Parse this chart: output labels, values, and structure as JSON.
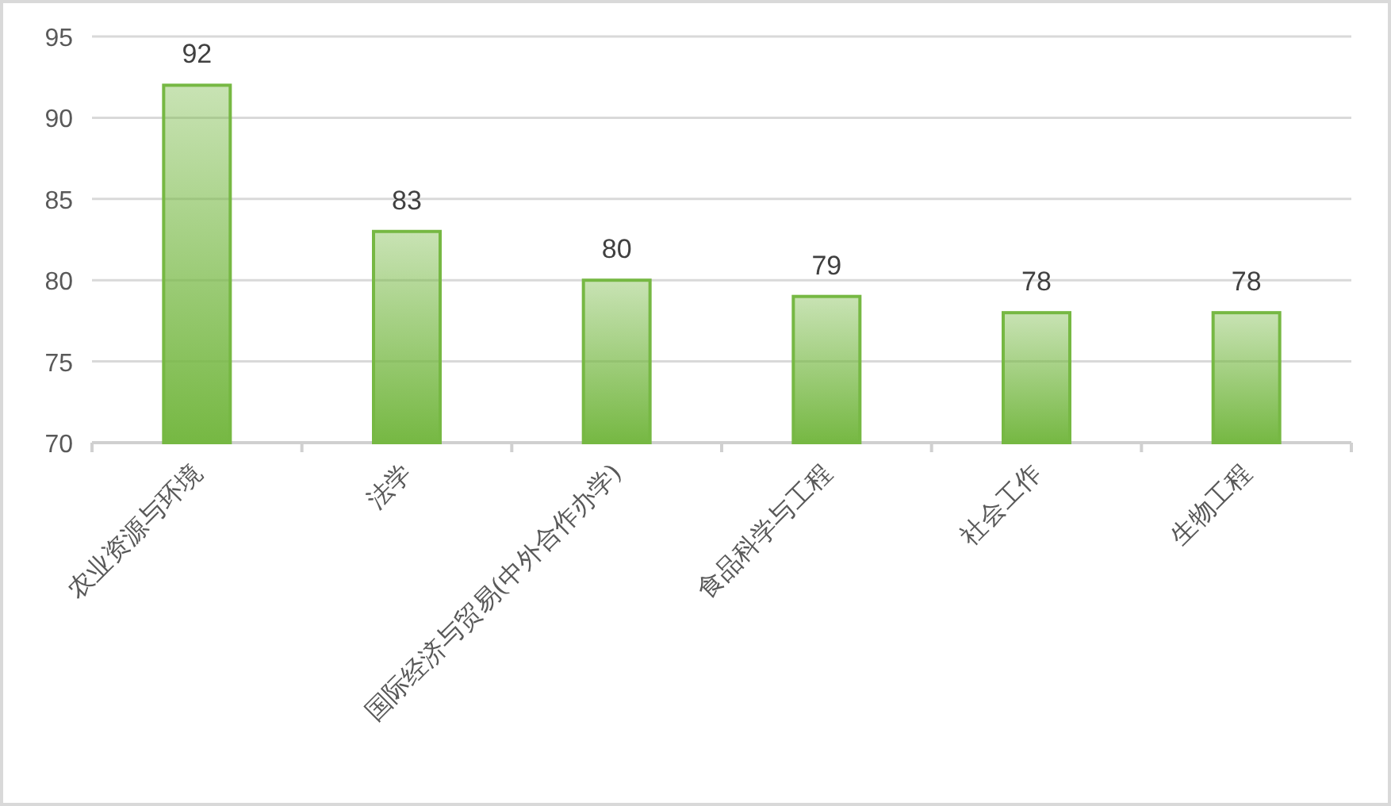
{
  "chart_data": {
    "type": "bar",
    "categories": [
      "农业资源与环境",
      "法学",
      "国际经济与贸易(中外合作办学)",
      "食品科学与工程",
      "社会工作",
      "生物工程"
    ],
    "values": [
      92,
      83,
      80,
      79,
      78,
      78
    ],
    "color": "#76b843",
    "ylim": [
      70,
      95
    ],
    "yticks": [
      70,
      75,
      80,
      85,
      90,
      95
    ],
    "grid": "y",
    "data_labels": true
  }
}
